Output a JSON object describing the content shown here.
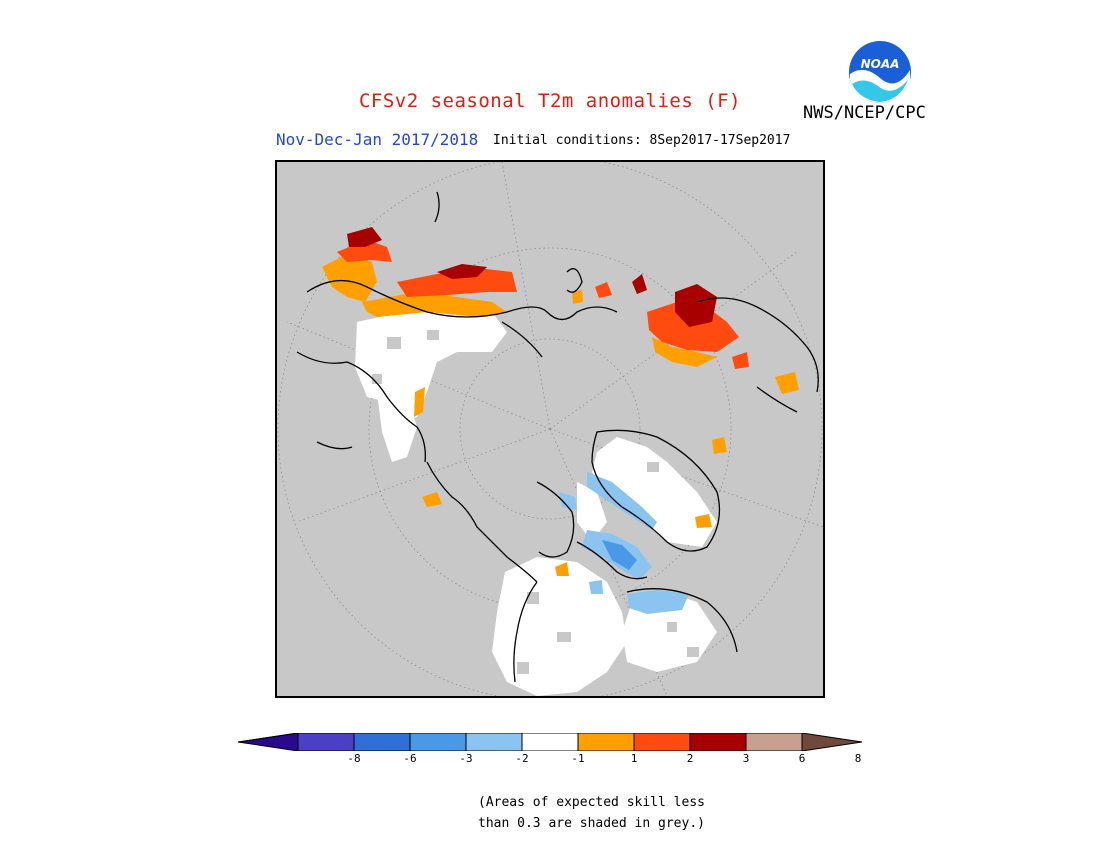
{
  "title": "CFSv2 seasonal T2m anomalies (F)",
  "org": "NWS/NCEP/CPC",
  "logo_text": "NOAA",
  "period": "Nov-Dec-Jan 2017/2018",
  "initial_conditions": "Initial conditions: 8Sep2017-17Sep2017",
  "note_lines": [
    "(Areas of expected skill less",
    "than 0.3 are shaded in grey.)"
  ],
  "colors": {
    "title": "#e8190f",
    "period": "#2447d8",
    "no_skill_grey": "#c8c8c8",
    "bins": [
      "#2a0a8c",
      "#4b3fc8",
      "#2f6fd8",
      "#4a98e8",
      "#8cc4f0",
      "#ffffff",
      "#ffa000",
      "#ff4a10",
      "#a80000",
      "#c8a090",
      "#70483c"
    ]
  },
  "colorbar": {
    "labels": [
      "-8",
      "-6",
      "-3",
      "-2",
      "-1",
      "1",
      "2",
      "3",
      "6",
      "8"
    ]
  }
}
